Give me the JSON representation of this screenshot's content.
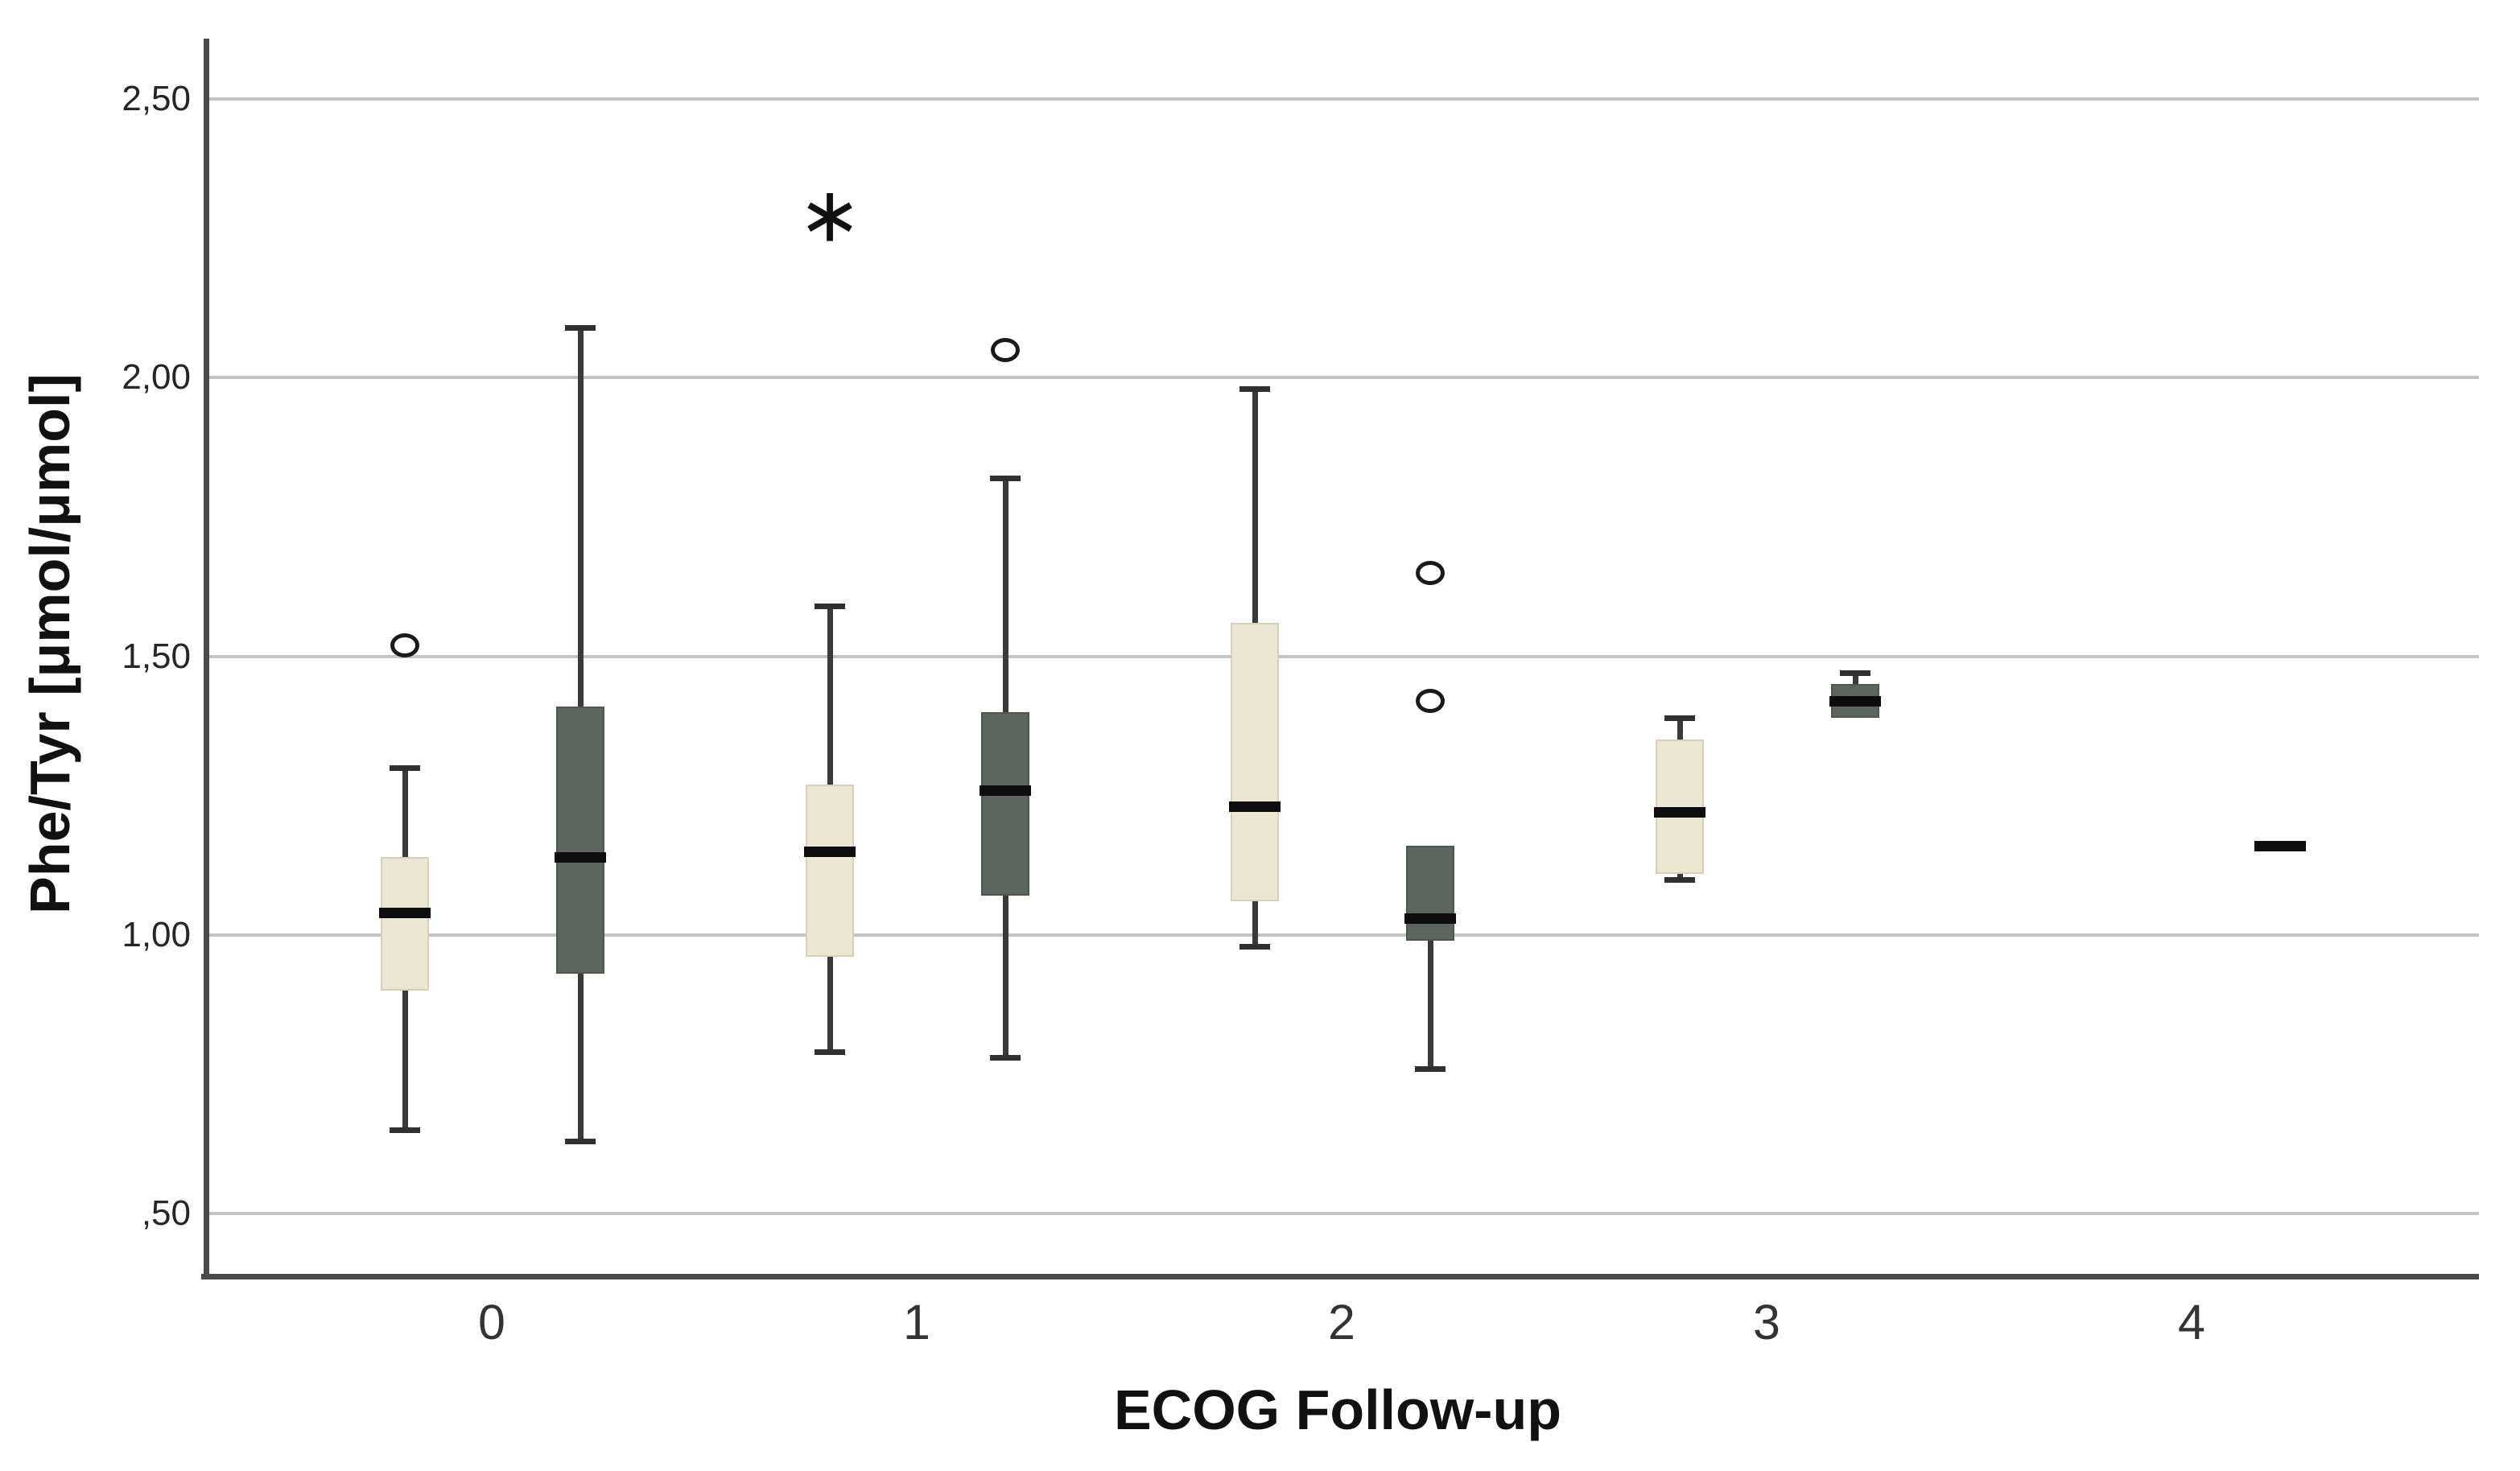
{
  "chart_data": {
    "type": "boxplot",
    "subtype": "clustered-vertical-boxplot",
    "title": "",
    "xlabel": "ECOG Follow-up",
    "ylabel": "Phe/Tyr  [μmol/μmol]",
    "categories": [
      "0",
      "1",
      "2",
      "3",
      "4"
    ],
    "y_tick_labels": [
      "2,50",
      "2,00",
      "1,50",
      "1,00",
      ",50"
    ],
    "y_tick_values": [
      2.5,
      2.0,
      1.5,
      1.0,
      0.5
    ],
    "ylim": [
      0.39,
      2.61
    ],
    "grid": "horizontal-only",
    "legend": "none",
    "decimal_separator": "comma",
    "colors": {
      "series1_fill": "#ece7d4",
      "series1_border": "#d6d0ba",
      "series2_fill": "#5c655e",
      "series2_border": "#4d564f",
      "median": "#0d0d0d",
      "whisker": "#3a3a3a",
      "gridline": "#c3c3c3",
      "axis": "#4a4a4a",
      "tick_text": "#262626"
    },
    "series": [
      {
        "name": "series-1-light",
        "cluster_position": "left",
        "boxes": [
          {
            "category": "0",
            "low": 0.65,
            "q1": 0.9,
            "median": 1.04,
            "q3": 1.14,
            "high": 1.3,
            "outliers": [
              1.52
            ],
            "extremes": []
          },
          {
            "category": "1",
            "low": 0.79,
            "q1": 0.96,
            "median": 1.15,
            "q3": 1.27,
            "high": 1.59,
            "outliers": [],
            "extremes": [
              2.29
            ]
          },
          {
            "category": "2",
            "low": 0.98,
            "q1": 1.06,
            "median": 1.23,
            "q3": 1.56,
            "high": 1.98,
            "outliers": [],
            "extremes": []
          },
          {
            "category": "3",
            "low": 1.1,
            "q1": 1.11,
            "median": 1.22,
            "q3": 1.35,
            "high": 1.39,
            "outliers": [],
            "extremes": []
          },
          {
            "category": "4",
            "empty": true
          }
        ]
      },
      {
        "name": "series-2-dark",
        "cluster_position": "right",
        "boxes": [
          {
            "category": "0",
            "low": 0.63,
            "q1": 0.93,
            "median": 1.14,
            "q3": 1.41,
            "high": 2.09,
            "outliers": [],
            "extremes": []
          },
          {
            "category": "1",
            "low": 0.78,
            "q1": 1.07,
            "median": 1.26,
            "q3": 1.4,
            "high": 1.82,
            "outliers": [
              2.05
            ],
            "extremes": []
          },
          {
            "category": "2",
            "low": 0.76,
            "q1": 0.99,
            "median": 1.03,
            "q3": 1.16,
            "high": null,
            "outliers": [
              1.42,
              1.65
            ],
            "extremes": []
          },
          {
            "category": "3",
            "low": null,
            "q1": 1.39,
            "median": 1.42,
            "q3": 1.45,
            "high": 1.47,
            "outliers": [],
            "extremes": []
          },
          {
            "category": "4",
            "median_only": 1.16,
            "outliers": [],
            "extremes": []
          }
        ]
      }
    ]
  }
}
